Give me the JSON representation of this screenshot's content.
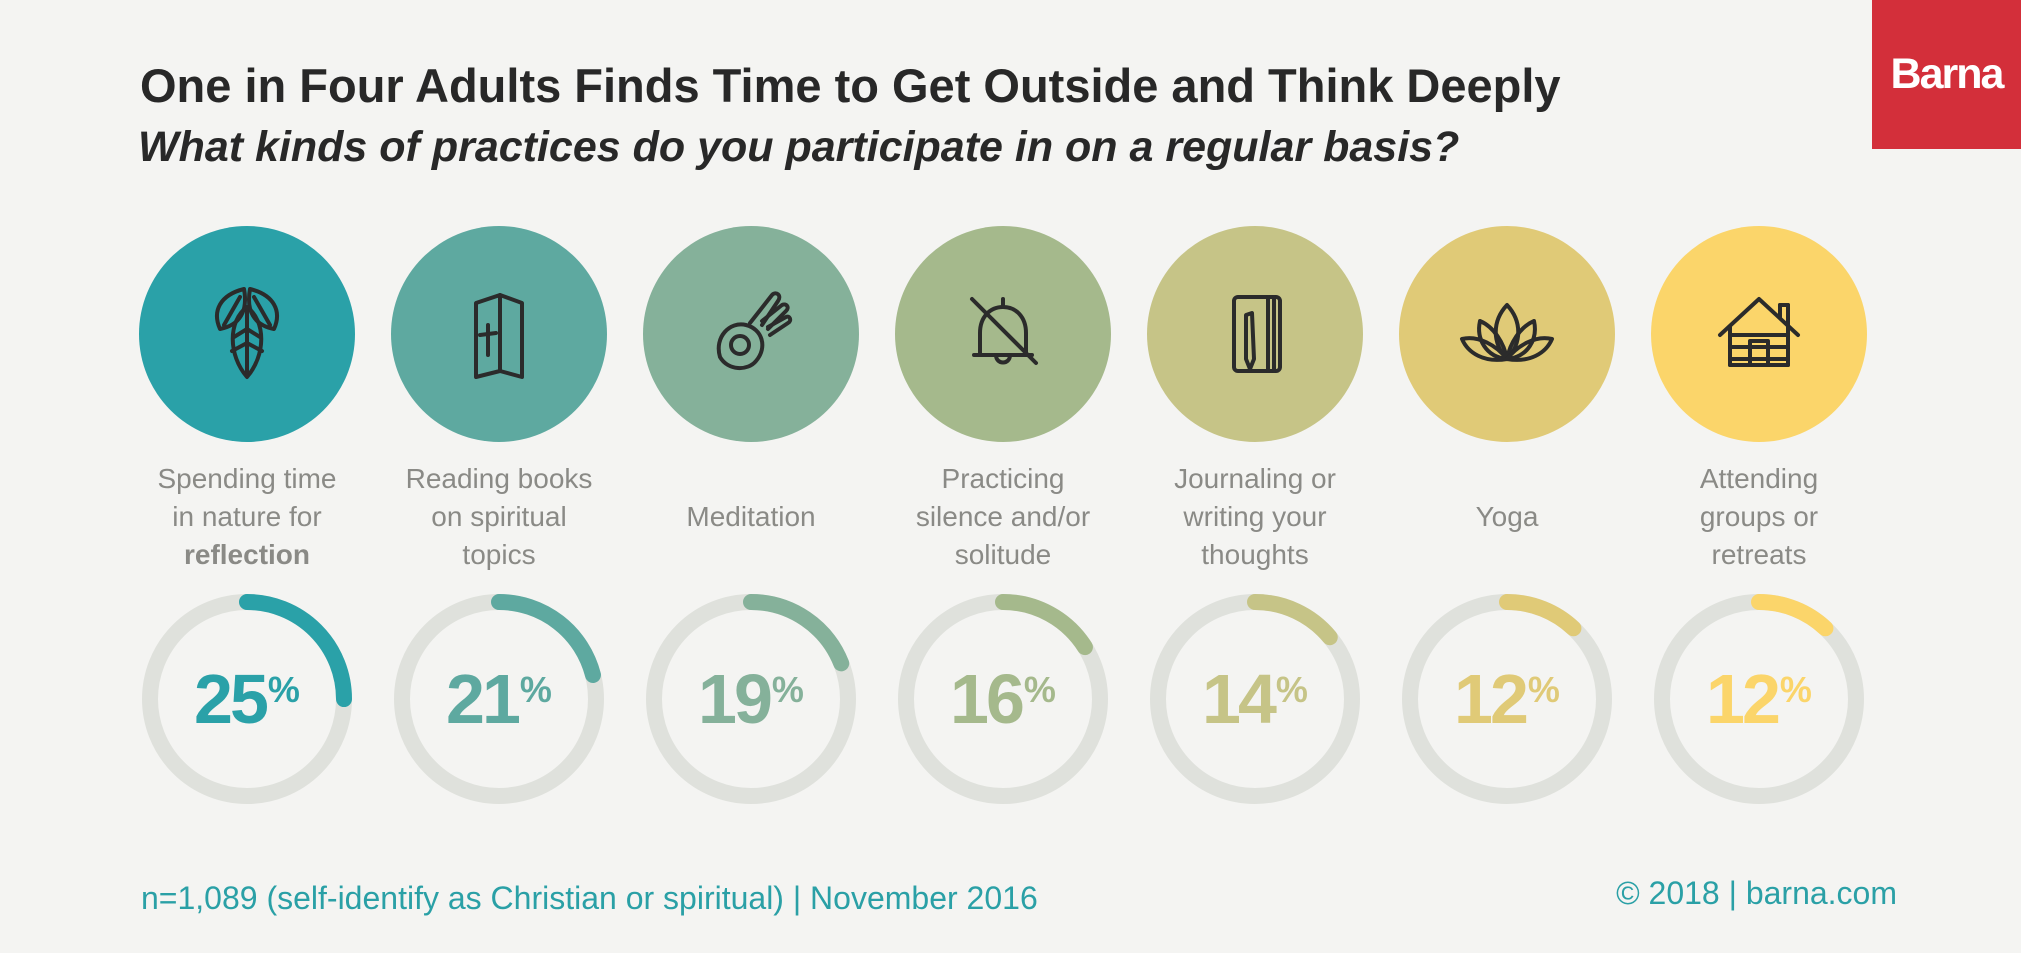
{
  "header": {
    "title": "One in Four Adults Finds Time to Get Outside and Think Deeply",
    "subtitle": "What kinds of practices do you participate in on a regular basis?"
  },
  "logo": {
    "text": "Barna",
    "color": "#d32f3a"
  },
  "footer": {
    "note": "n=1,089 (self-identify as Christian or spiritual) | November 2016",
    "copyright": "© 2018 | barna.com"
  },
  "colors": {
    "ring_track": "#dfe1dc",
    "text_accent": "#2aa0a6"
  },
  "chart_data": {
    "type": "donut",
    "unit": "%",
    "ylim": [
      0,
      100
    ],
    "categories": [
      "Spending time in nature for reflection",
      "Reading books on spiritual topics",
      "Meditation",
      "Practicing silence and/or solitude",
      "Journaling or writing your thoughts",
      "Yoga",
      "Attending groups or retreats"
    ],
    "values": [
      25,
      21,
      19,
      16,
      14,
      12,
      12
    ],
    "items": [
      {
        "label_lines": [
          "Spending time",
          "in nature for",
          "reflection"
        ],
        "bold_line": 2,
        "value": 25,
        "display": "25",
        "color": "#2aa1a8",
        "icon": "leaves-icon"
      },
      {
        "label_lines": [
          "Reading books",
          "on spiritual",
          "topics"
        ],
        "bold_line": -1,
        "value": 21,
        "display": "21",
        "color": "#5ea9a0",
        "icon": "bible-icon"
      },
      {
        "label_lines": [
          "Meditation"
        ],
        "bold_line": -1,
        "value": 19,
        "display": "19",
        "color": "#85b19a",
        "icon": "meditation-hand-icon"
      },
      {
        "label_lines": [
          "Practicing",
          "silence and/or",
          "solitude"
        ],
        "bold_line": -1,
        "value": 16,
        "display": "16",
        "color": "#a5b98c",
        "icon": "muted-bell-icon"
      },
      {
        "label_lines": [
          "Journaling or",
          "writing your",
          "thoughts"
        ],
        "bold_line": -1,
        "value": 14,
        "display": "14",
        "color": "#c6c487",
        "icon": "journal-icon"
      },
      {
        "label_lines": [
          "Yoga"
        ],
        "bold_line": -1,
        "value": 12,
        "display": "12",
        "color": "#e0ca77",
        "icon": "lotus-icon"
      },
      {
        "label_lines": [
          "Attending",
          "groups or",
          "retreats"
        ],
        "bold_line": -1,
        "value": 12,
        "display": "12",
        "color": "#fbd56a",
        "icon": "cabin-icon"
      }
    ]
  }
}
